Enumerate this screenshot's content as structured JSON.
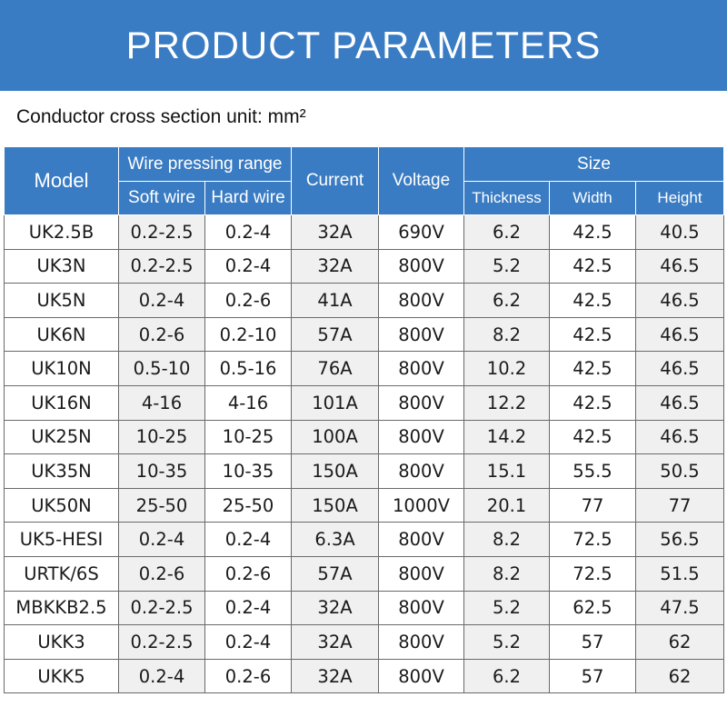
{
  "banner": {
    "title": "PRODUCT PARAMETERS"
  },
  "unit_note": "Conductor cross section unit: mm²",
  "table": {
    "headers": {
      "model": "Model",
      "wire_range": "Wire pressing range",
      "soft_wire": "Soft wire",
      "hard_wire": "Hard wire",
      "current": "Current",
      "voltage": "Voltage",
      "size": "Size",
      "thickness": "Thickness",
      "width": "Width",
      "height": "Height"
    },
    "rows": [
      [
        "UK2.5B",
        "0.2-2.5",
        "0.2-4",
        "32A",
        "690V",
        "6.2",
        "42.5",
        "40.5"
      ],
      [
        "UK3N",
        "0.2-2.5",
        "0.2-4",
        "32A",
        "800V",
        "5.2",
        "42.5",
        "46.5"
      ],
      [
        "UK5N",
        "0.2-4",
        "0.2-6",
        "41A",
        "800V",
        "6.2",
        "42.5",
        "46.5"
      ],
      [
        "UK6N",
        "0.2-6",
        "0.2-10",
        "57A",
        "800V",
        "8.2",
        "42.5",
        "46.5"
      ],
      [
        "UK10N",
        "0.5-10",
        "0.5-16",
        "76A",
        "800V",
        "10.2",
        "42.5",
        "46.5"
      ],
      [
        "UK16N",
        "4-16",
        "4-16",
        "101A",
        "800V",
        "12.2",
        "42.5",
        "46.5"
      ],
      [
        "UK25N",
        "10-25",
        "10-25",
        "100A",
        "800V",
        "14.2",
        "42.5",
        "46.5"
      ],
      [
        "UK35N",
        "10-35",
        "10-35",
        "150A",
        "800V",
        "15.1",
        "55.5",
        "50.5"
      ],
      [
        "UK50N",
        "25-50",
        "25-50",
        "150A",
        "1000V",
        "20.1",
        "77",
        "77"
      ],
      [
        "UK5-HESI",
        "0.2-4",
        "0.2-4",
        "6.3A",
        "800V",
        "8.2",
        "72.5",
        "56.5"
      ],
      [
        "URTK/6S",
        "0.2-6",
        "0.2-6",
        "57A",
        "800V",
        "8.2",
        "72.5",
        "51.5"
      ],
      [
        "MBKKB2.5",
        "0.2-2.5",
        "0.2-4",
        "32A",
        "800V",
        "5.2",
        "62.5",
        "47.5"
      ],
      [
        "UKK3",
        "0.2-2.5",
        "0.2-4",
        "32A",
        "800V",
        "5.2",
        "57",
        "62"
      ],
      [
        "UKK5",
        "0.2-4",
        "0.2-6",
        "32A",
        "800V",
        "6.2",
        "57",
        "62"
      ]
    ]
  },
  "colors": {
    "header_blue": "#3a7cc3",
    "row_shade": "#f0f0f0"
  }
}
